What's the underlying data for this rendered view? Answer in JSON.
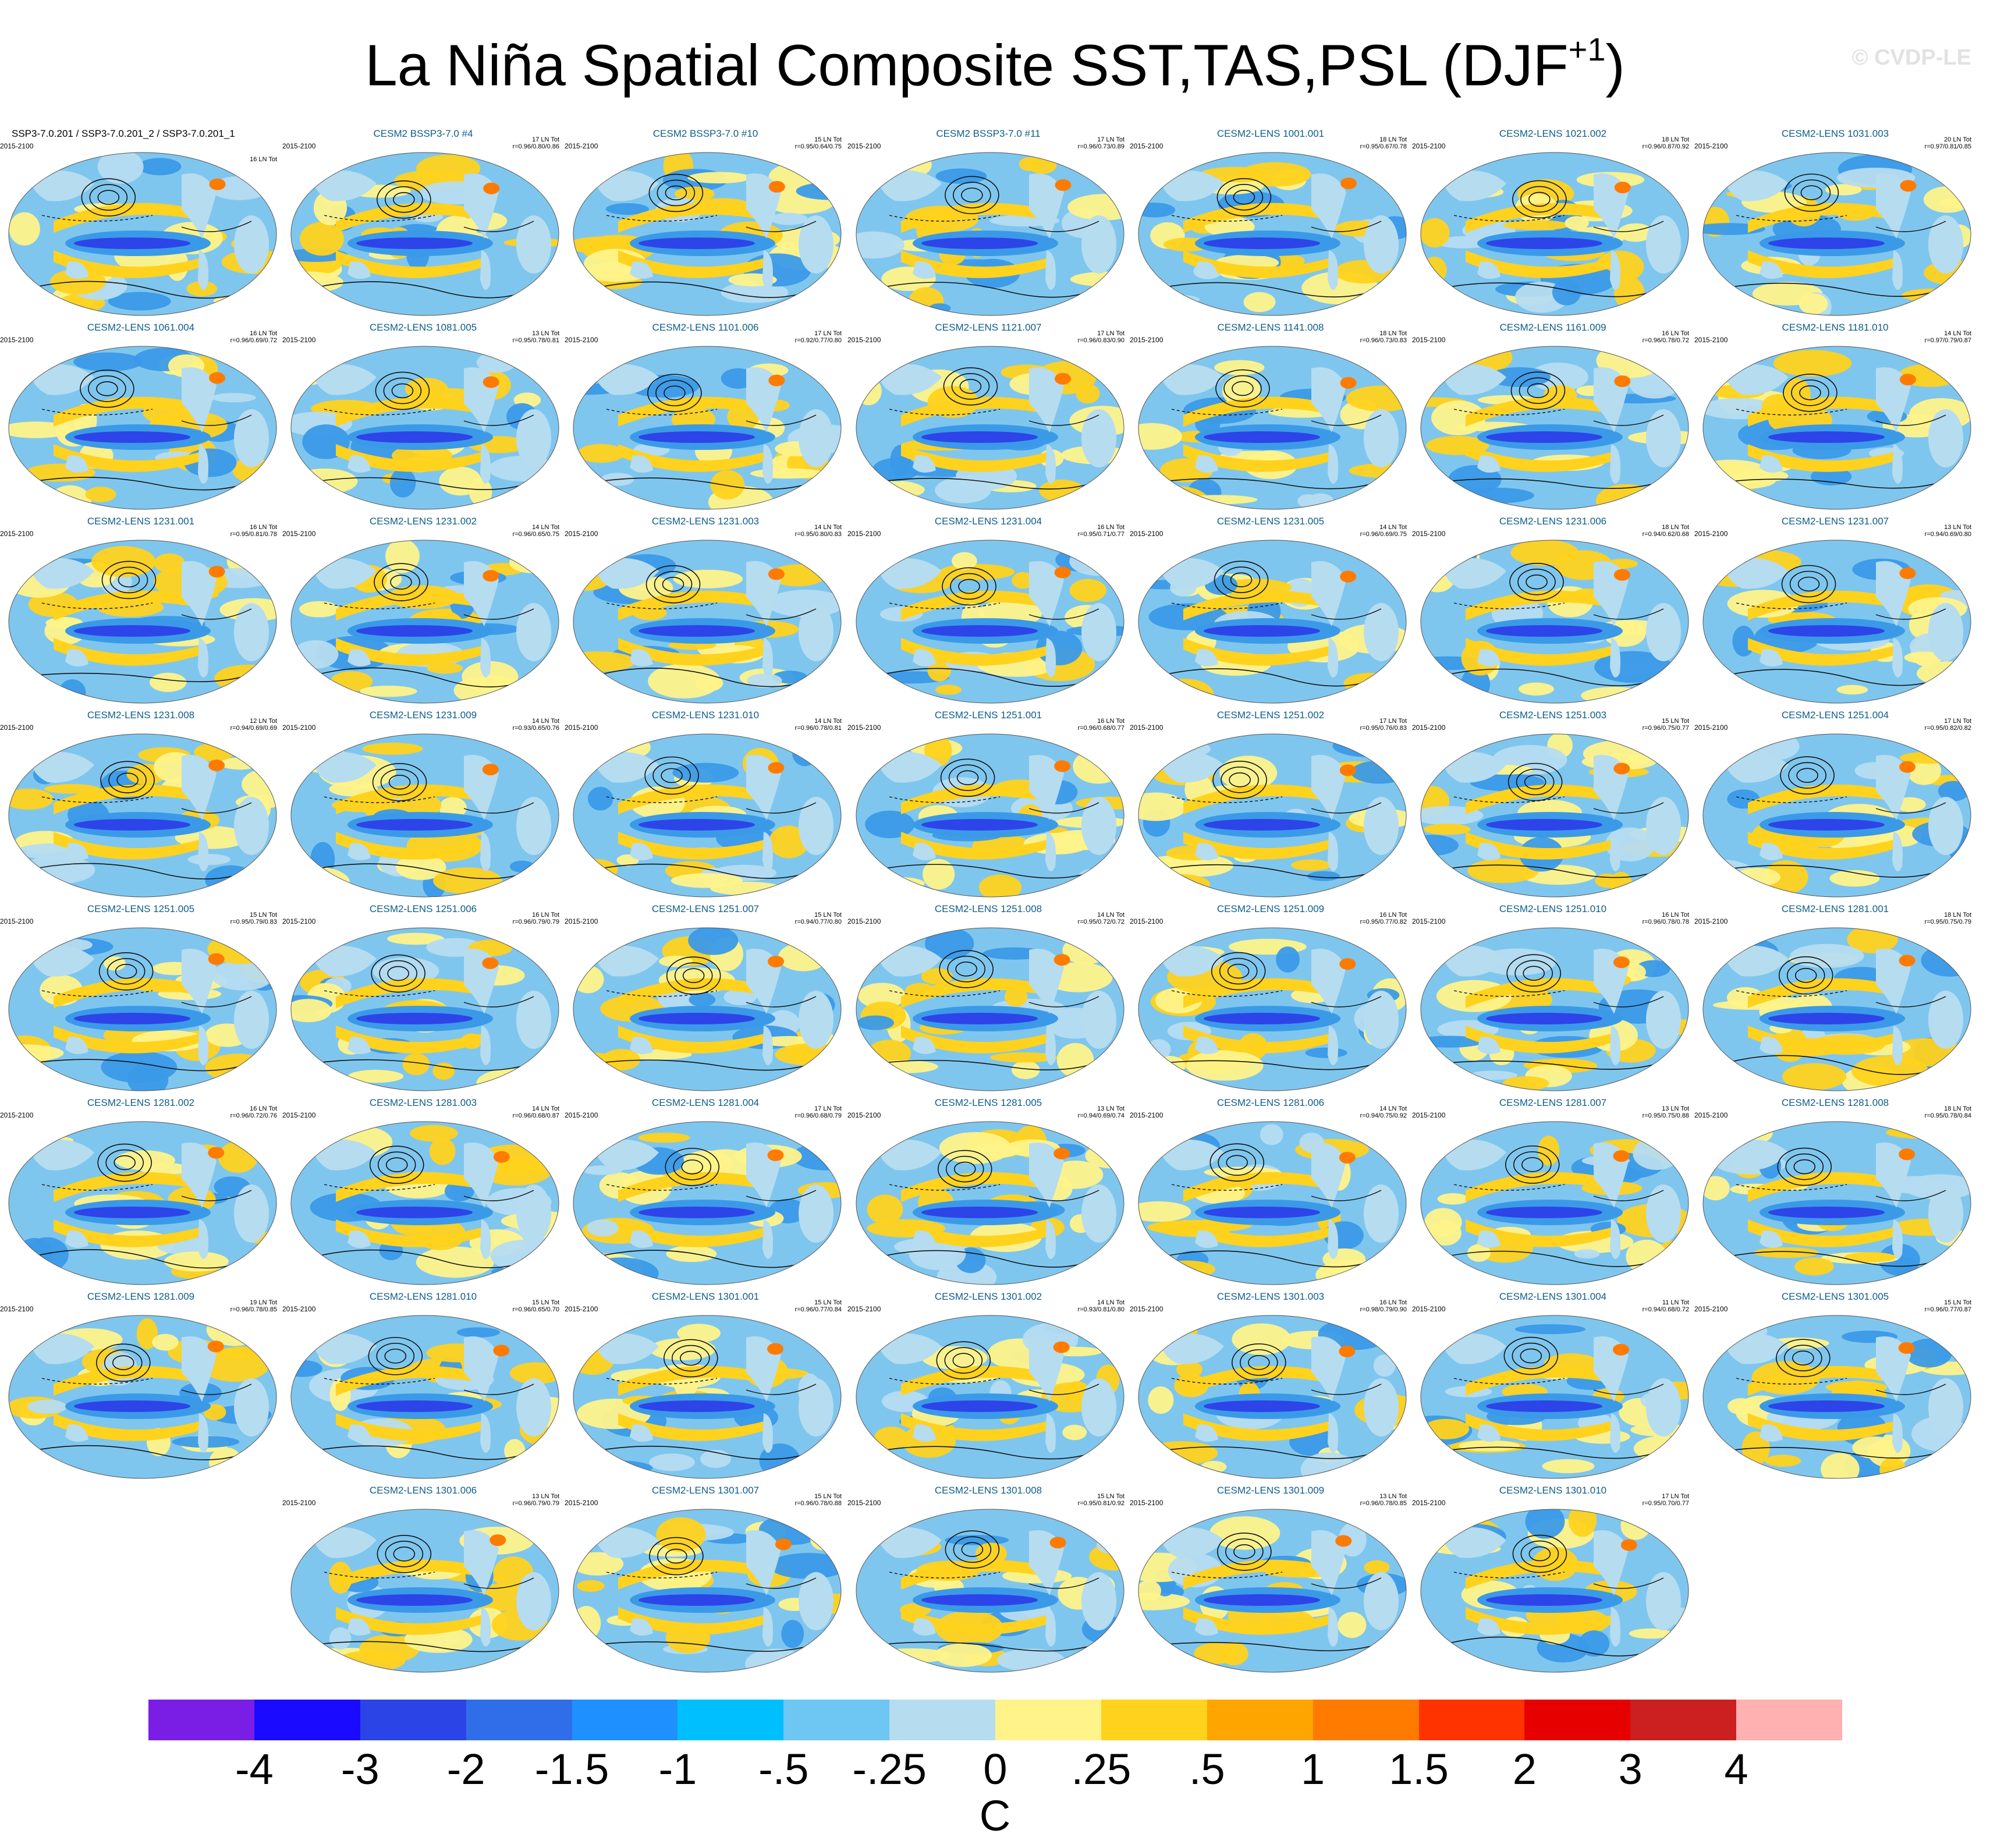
{
  "title": "La Niña Spatial Composite SST,TAS,PSL (DJF",
  "title_sup": "+1",
  "title_close": ")",
  "watermark": "© CVDP-LE",
  "colors": {
    "land": "#b6dcf0",
    "ocean_cool": "#7fc6ee",
    "ocean_neg": "#3b9ae8",
    "tropical_band": "#2d44e8",
    "warm": "#ffd21e",
    "yellow": "#fff38a",
    "hot": "#ff7b00",
    "contour": "#111111",
    "panel_title": "#0d5c8a"
  },
  "panels": [
    {
      "name": "SSP3-7.0.201 / SSP3-7.0.201_2 / SSP3-7.0.201_1",
      "period": "2015-2100",
      "count": "16 LN Tot",
      "stats": ""
    },
    {
      "name": "CESM2 BSSP3-7.0 #4",
      "period": "2015-2100",
      "count": "17 LN Tot",
      "stats": "r=0.96/0.80/0.86"
    },
    {
      "name": "CESM2 BSSP3-7.0 #10",
      "period": "2015-2100",
      "count": "15 LN Tot",
      "stats": "r=0.95/0.64/0.75"
    },
    {
      "name": "CESM2 BSSP3-7.0 #11",
      "period": "2015-2100",
      "count": "17 LN Tot",
      "stats": "r=0.96/0.73/0.89"
    },
    {
      "name": "CESM2-LENS 1001.001",
      "period": "2015-2100",
      "count": "18 LN Tot",
      "stats": "r=0.95/0.67/0.78"
    },
    {
      "name": "CESM2-LENS 1021.002",
      "period": "2015-2100",
      "count": "18 LN Tot",
      "stats": "r=0.96/0.87/0.92"
    },
    {
      "name": "CESM2-LENS 1031.003",
      "period": "2015-2100",
      "count": "20 LN Tot",
      "stats": "r=0.97/0.81/0.85"
    },
    {
      "name": "CESM2-LENS 1061.004",
      "period": "2015-2100",
      "count": "16 LN Tot",
      "stats": "r=0.96/0.69/0.72"
    },
    {
      "name": "CESM2-LENS 1081.005",
      "period": "2015-2100",
      "count": "13 LN Tot",
      "stats": "r=0.95/0.78/0.81"
    },
    {
      "name": "CESM2-LENS 1101.006",
      "period": "2015-2100",
      "count": "17 LN Tot",
      "stats": "r=0.92/0.77/0.80"
    },
    {
      "name": "CESM2-LENS 1121.007",
      "period": "2015-2100",
      "count": "17 LN Tot",
      "stats": "r=0.96/0.83/0.90"
    },
    {
      "name": "CESM2-LENS 1141.008",
      "period": "2015-2100",
      "count": "18 LN Tot",
      "stats": "r=0.96/0.73/0.83"
    },
    {
      "name": "CESM2-LENS 1161.009",
      "period": "2015-2100",
      "count": "16 LN Tot",
      "stats": "r=0.96/0.78/0.72"
    },
    {
      "name": "CESM2-LENS 1181.010",
      "period": "2015-2100",
      "count": "14 LN Tot",
      "stats": "r=0.97/0.79/0.87"
    },
    {
      "name": "CESM2-LENS 1231.001",
      "period": "2015-2100",
      "count": "16 LN Tot",
      "stats": "r=0.95/0.81/0.78"
    },
    {
      "name": "CESM2-LENS 1231.002",
      "period": "2015-2100",
      "count": "14 LN Tot",
      "stats": "r=0.96/0.65/0.75"
    },
    {
      "name": "CESM2-LENS 1231.003",
      "period": "2015-2100",
      "count": "14 LN Tot",
      "stats": "r=0.95/0.80/0.83"
    },
    {
      "name": "CESM2-LENS 1231.004",
      "period": "2015-2100",
      "count": "16 LN Tot",
      "stats": "r=0.95/0.71/0.77"
    },
    {
      "name": "CESM2-LENS 1231.005",
      "period": "2015-2100",
      "count": "14 LN Tot",
      "stats": "r=0.96/0.69/0.75"
    },
    {
      "name": "CESM2-LENS 1231.006",
      "period": "2015-2100",
      "count": "18 LN Tot",
      "stats": "r=0.94/0.62/0.68"
    },
    {
      "name": "CESM2-LENS 1231.007",
      "period": "2015-2100",
      "count": "13 LN Tot",
      "stats": "r=0.94/0.69/0.80"
    },
    {
      "name": "CESM2-LENS 1231.008",
      "period": "2015-2100",
      "count": "12 LN Tot",
      "stats": "r=0.94/0.69/0.69"
    },
    {
      "name": "CESM2-LENS 1231.009",
      "period": "2015-2100",
      "count": "14 LN Tot",
      "stats": "r=0.93/0.65/0.76"
    },
    {
      "name": "CESM2-LENS 1231.010",
      "period": "2015-2100",
      "count": "14 LN Tot",
      "stats": "r=0.96/0.78/0.81"
    },
    {
      "name": "CESM2-LENS 1251.001",
      "period": "2015-2100",
      "count": "16 LN Tot",
      "stats": "r=0.96/0.68/0.77"
    },
    {
      "name": "CESM2-LENS 1251.002",
      "period": "2015-2100",
      "count": "17 LN Tot",
      "stats": "r=0.95/0.76/0.83"
    },
    {
      "name": "CESM2-LENS 1251.003",
      "period": "2015-2100",
      "count": "15 LN Tot",
      "stats": "r=0.96/0.75/0.77"
    },
    {
      "name": "CESM2-LENS 1251.004",
      "period": "2015-2100",
      "count": "17 LN Tot",
      "stats": "r=0.95/0.82/0.82"
    },
    {
      "name": "CESM2-LENS 1251.005",
      "period": "2015-2100",
      "count": "15 LN Tot",
      "stats": "r=0.95/0.79/0.83"
    },
    {
      "name": "CESM2-LENS 1251.006",
      "period": "2015-2100",
      "count": "16 LN Tot",
      "stats": "r=0.96/0.79/0.79"
    },
    {
      "name": "CESM2-LENS 1251.007",
      "period": "2015-2100",
      "count": "15 LN Tot",
      "stats": "r=0.94/0.77/0.80"
    },
    {
      "name": "CESM2-LENS 1251.008",
      "period": "2015-2100",
      "count": "14 LN Tot",
      "stats": "r=0.95/0.72/0.72"
    },
    {
      "name": "CESM2-LENS 1251.009",
      "period": "2015-2100",
      "count": "16 LN Tot",
      "stats": "r=0.95/0.77/0.82"
    },
    {
      "name": "CESM2-LENS 1251.010",
      "period": "2015-2100",
      "count": "16 LN Tot",
      "stats": "r=0.96/0.78/0.78"
    },
    {
      "name": "CESM2-LENS 1281.001",
      "period": "2015-2100",
      "count": "18 LN Tot",
      "stats": "r=0.95/0.75/0.79"
    },
    {
      "name": "CESM2-LENS 1281.002",
      "period": "2015-2100",
      "count": "16 LN Tot",
      "stats": "r=0.96/0.72/0.76"
    },
    {
      "name": "CESM2-LENS 1281.003",
      "period": "2015-2100",
      "count": "14 LN Tot",
      "stats": "r=0.96/0.68/0.87"
    },
    {
      "name": "CESM2-LENS 1281.004",
      "period": "2015-2100",
      "count": "17 LN Tot",
      "stats": "r=0.96/0.68/0.79"
    },
    {
      "name": "CESM2-LENS 1281.005",
      "period": "2015-2100",
      "count": "13 LN Tot",
      "stats": "r=0.94/0.69/0.74"
    },
    {
      "name": "CESM2-LENS 1281.006",
      "period": "2015-2100",
      "count": "14 LN Tot",
      "stats": "r=0.94/0.75/0.92"
    },
    {
      "name": "CESM2-LENS 1281.007",
      "period": "2015-2100",
      "count": "13 LN Tot",
      "stats": "r=0.95/0.75/0.88"
    },
    {
      "name": "CESM2-LENS 1281.008",
      "period": "2015-2100",
      "count": "18 LN Tot",
      "stats": "r=0.95/0.78/0.84"
    },
    {
      "name": "CESM2-LENS 1281.009",
      "period": "2015-2100",
      "count": "19 LN Tot",
      "stats": "r=0.96/0.78/0.85"
    },
    {
      "name": "CESM2-LENS 1281.010",
      "period": "2015-2100",
      "count": "15 LN Tot",
      "stats": "r=0.96/0.65/0.70"
    },
    {
      "name": "CESM2-LENS 1301.001",
      "period": "2015-2100",
      "count": "15 LN Tot",
      "stats": "r=0.96/0.77/0.84"
    },
    {
      "name": "CESM2-LENS 1301.002",
      "period": "2015-2100",
      "count": "14 LN Tot",
      "stats": "r=0.93/0.81/0.80"
    },
    {
      "name": "CESM2-LENS 1301.003",
      "period": "2015-2100",
      "count": "16 LN Tot",
      "stats": "r=0.98/0.79/0.90"
    },
    {
      "name": "CESM2-LENS 1301.004",
      "period": "2015-2100",
      "count": "11 LN Tot",
      "stats": "r=0.94/0.68/0.72"
    },
    {
      "name": "CESM2-LENS 1301.005",
      "period": "2015-2100",
      "count": "15 LN Tot",
      "stats": "r=0.96/0.77/0.87"
    },
    {
      "name": "CESM2-LENS 1301.006",
      "period": "2015-2100",
      "count": "13 LN Tot",
      "stats": "r=0.96/0.79/0.79"
    },
    {
      "name": "CESM2-LENS 1301.007",
      "period": "2015-2100",
      "count": "15 LN Tot",
      "stats": "r=0.96/0.78/0.88"
    },
    {
      "name": "CESM2-LENS 1301.008",
      "period": "2015-2100",
      "count": "15 LN Tot",
      "stats": "r=0.95/0.81/0.92"
    },
    {
      "name": "CESM2-LENS 1301.009",
      "period": "2015-2100",
      "count": "13 LN Tot",
      "stats": "r=0.96/0.78/0.85"
    },
    {
      "name": "CESM2-LENS 1301.010",
      "period": "2015-2100",
      "count": "17 LN Tot",
      "stats": "r=0.95/0.70/0.77"
    }
  ],
  "colorbar": {
    "colors": [
      "#7a1ee6",
      "#1a0aff",
      "#2a44e6",
      "#2f6ee8",
      "#1e90ff",
      "#00bfff",
      "#6ec6f2",
      "#b6dcf0",
      "#fff38a",
      "#ffd21e",
      "#ffa500",
      "#ff7b00",
      "#ff3300",
      "#e60000",
      "#cc1f1f",
      "#ffb0b0"
    ],
    "labels": [
      "-4",
      "-3",
      "-2",
      "-1.5",
      "-1",
      "-.5",
      "-.25",
      "0",
      ".25",
      ".5",
      "1",
      "1.5",
      "2",
      "3",
      "4"
    ],
    "units": "C"
  }
}
